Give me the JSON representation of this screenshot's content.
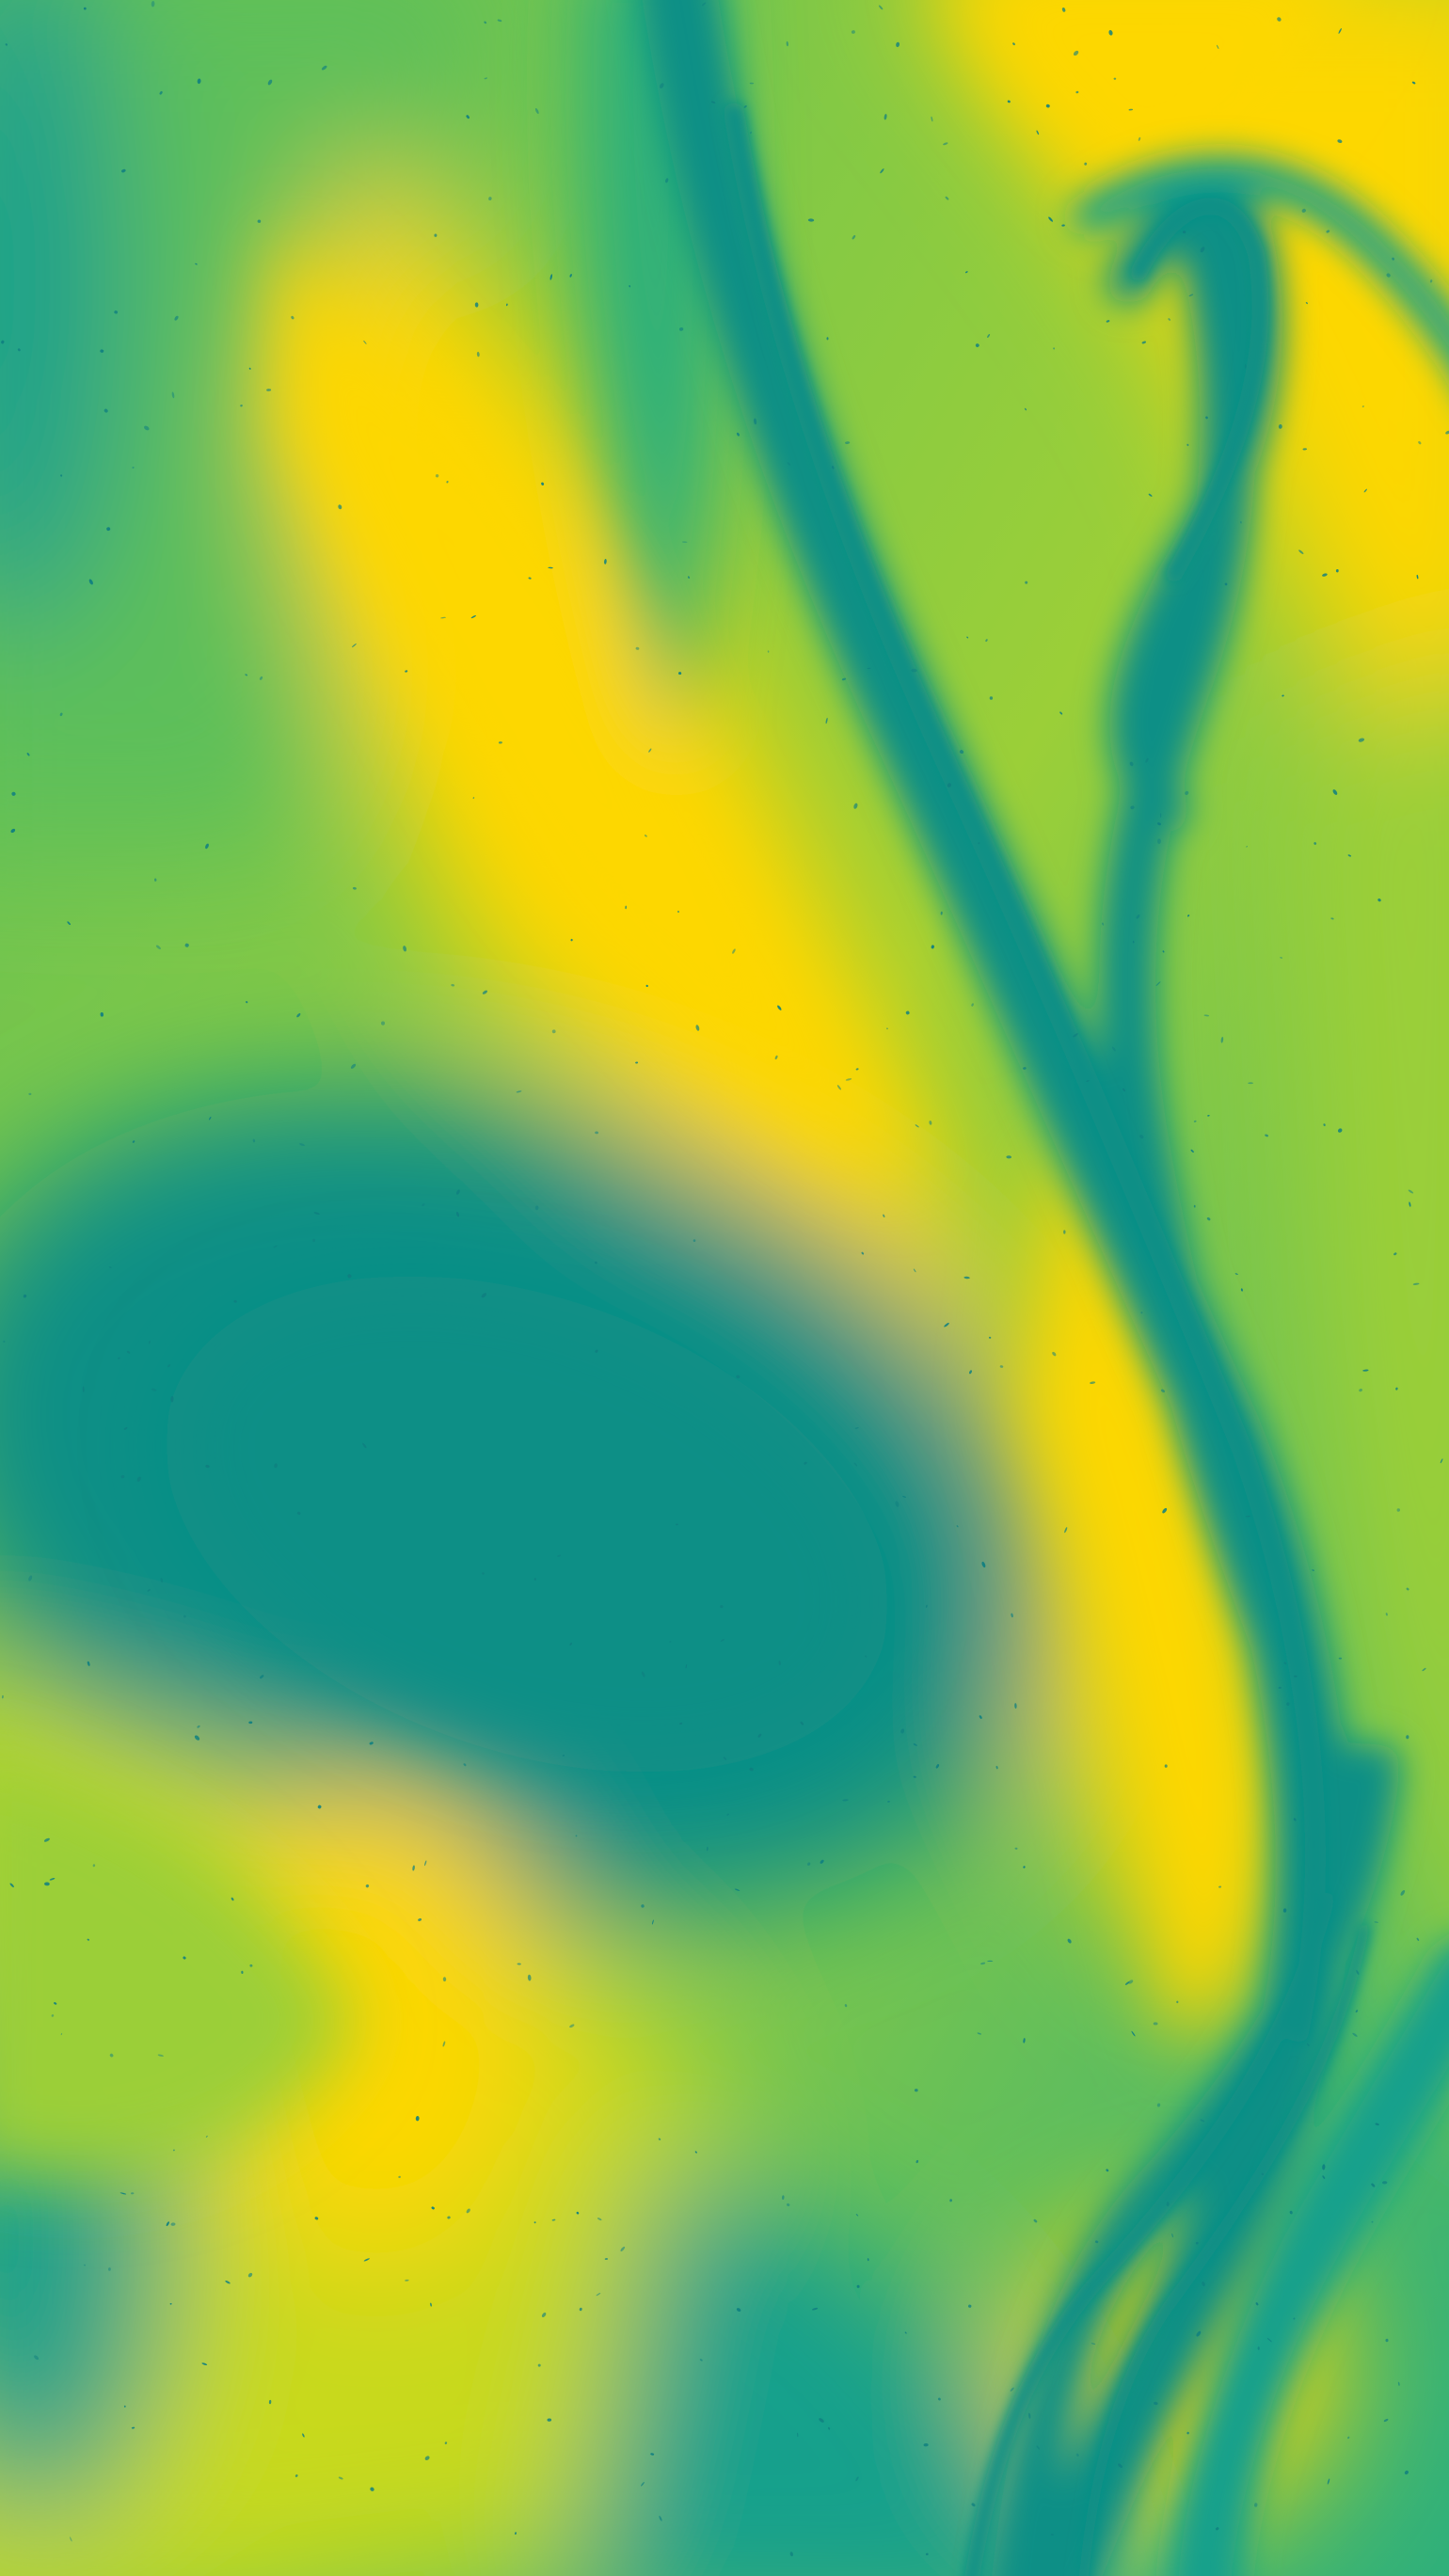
{
  "image": {
    "subject": "abstract-fluid-marbled-texture",
    "palette": {
      "deep_teal": "#0a8f86",
      "teal": "#17a08c",
      "sea_green": "#2fb07a",
      "green": "#5dbf5a",
      "lime": "#9bcf38",
      "yellow_green": "#c8d91c",
      "yellow": "#fdd702",
      "speck": "#0f7f80"
    }
  }
}
